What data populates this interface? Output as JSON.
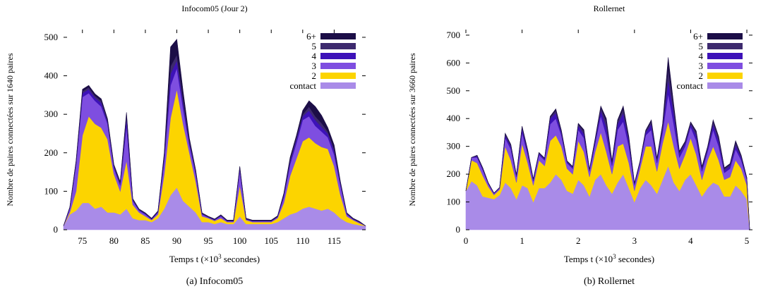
{
  "colors": {
    "contact": "#a98be8",
    "2": "#fcd400",
    "3": "#7e4ee0",
    "4": "#3d12b8",
    "5": "#3d2a6e",
    "6+": "#1c0e47"
  },
  "layer_keys": [
    "contact",
    "2",
    "3",
    "4",
    "5",
    "6+"
  ],
  "chart_data": [
    {
      "type": "area",
      "stacked": true,
      "title": "Infocom05 (Jour 2)",
      "xlabel_prefix": "Temps t (×10",
      "xlabel_exp": "3",
      "xlabel_suffix": " secondes)",
      "ylabel": "Nombre de paires connectées sur 1640 paires",
      "xlim": [
        72,
        120
      ],
      "ylim": [
        0,
        520
      ],
      "xticks": [
        75,
        80,
        85,
        90,
        95,
        100,
        105,
        110,
        115
      ],
      "yticks": [
        0,
        100,
        200,
        300,
        400,
        500
      ],
      "legend": {
        "position": "top-right",
        "labels": [
          "6+",
          "5",
          "4",
          "3",
          "2",
          "contact"
        ]
      },
      "caption": "(a) Infocom05",
      "x": [
        72,
        73,
        74,
        75,
        76,
        77,
        78,
        79,
        80,
        81,
        82,
        83,
        84,
        85,
        86,
        87,
        88,
        89,
        90,
        91,
        92,
        93,
        94,
        95,
        96,
        97,
        98,
        99,
        100,
        101,
        102,
        103,
        104,
        105,
        106,
        107,
        108,
        109,
        110,
        111,
        112,
        113,
        114,
        115,
        116,
        117,
        118,
        119,
        120
      ],
      "series": [
        {
          "name": "contact",
          "values": [
            10,
            40,
            50,
            70,
            70,
            55,
            60,
            45,
            45,
            40,
            55,
            30,
            25,
            25,
            20,
            30,
            55,
            90,
            110,
            75,
            60,
            45,
            20,
            20,
            15,
            20,
            15,
            15,
            35,
            15,
            15,
            15,
            15,
            15,
            20,
            30,
            40,
            45,
            55,
            60,
            55,
            50,
            55,
            45,
            30,
            20,
            15,
            12,
            10
          ]
        },
        {
          "name": "2",
          "values": [
            0,
            5,
            50,
            175,
            225,
            220,
            205,
            190,
            100,
            60,
            125,
            35,
            20,
            10,
            5,
            10,
            90,
            200,
            255,
            200,
            140,
            80,
            15,
            10,
            8,
            10,
            5,
            5,
            80,
            10,
            5,
            5,
            5,
            5,
            10,
            40,
            100,
            140,
            175,
            180,
            170,
            165,
            155,
            120,
            60,
            15,
            10,
            5,
            0
          ]
        },
        {
          "name": "3",
          "values": [
            0,
            10,
            70,
            100,
            60,
            60,
            55,
            40,
            15,
            15,
            90,
            10,
            5,
            5,
            2,
            5,
            35,
            85,
            55,
            40,
            20,
            20,
            5,
            2,
            2,
            5,
            2,
            2,
            40,
            2,
            2,
            2,
            2,
            2,
            3,
            15,
            30,
            40,
            55,
            55,
            45,
            40,
            30,
            30,
            25,
            5,
            2,
            2,
            0
          ]
        },
        {
          "name": "4",
          "values": [
            0,
            2,
            5,
            10,
            10,
            8,
            10,
            5,
            5,
            5,
            20,
            3,
            2,
            2,
            1,
            2,
            10,
            30,
            20,
            15,
            8,
            5,
            2,
            1,
            1,
            2,
            1,
            1,
            5,
            1,
            1,
            1,
            1,
            1,
            1,
            5,
            8,
            10,
            10,
            15,
            15,
            12,
            10,
            10,
            5,
            2,
            1,
            1,
            0
          ]
        },
        {
          "name": "5",
          "values": [
            0,
            1,
            3,
            5,
            5,
            5,
            5,
            5,
            3,
            3,
            10,
            2,
            1,
            1,
            1,
            1,
            5,
            20,
            15,
            10,
            5,
            3,
            1,
            1,
            1,
            1,
            1,
            1,
            3,
            1,
            1,
            1,
            1,
            1,
            1,
            3,
            5,
            5,
            5,
            10,
            10,
            10,
            5,
            5,
            3,
            1,
            1,
            1,
            0
          ]
        },
        {
          "name": "6+",
          "values": [
            0,
            1,
            2,
            5,
            5,
            5,
            5,
            3,
            2,
            2,
            5,
            1,
            1,
            1,
            1,
            1,
            5,
            50,
            40,
            20,
            5,
            2,
            1,
            1,
            1,
            1,
            1,
            1,
            2,
            1,
            1,
            1,
            1,
            1,
            1,
            2,
            5,
            5,
            10,
            15,
            25,
            20,
            10,
            10,
            2,
            1,
            1,
            1,
            0
          ]
        }
      ]
    },
    {
      "type": "area",
      "stacked": true,
      "title": "Rollernet",
      "xlabel_prefix": "Temps t (×10",
      "xlabel_exp": "3",
      "xlabel_suffix": " secondes)",
      "ylabel": "Nombre de paires connectées sur 3660 paires",
      "xlim": [
        0,
        5.1
      ],
      "ylim": [
        0,
        720
      ],
      "xticks": [
        0,
        1,
        2,
        3,
        4,
        5
      ],
      "yticks": [
        0,
        100,
        200,
        300,
        400,
        500,
        600,
        700
      ],
      "legend": {
        "position": "top-right",
        "labels": [
          "6+",
          "5",
          "4",
          "3",
          "2",
          "contact"
        ]
      },
      "caption": "(b) Rollernet",
      "x": [
        0,
        0.1,
        0.2,
        0.3,
        0.4,
        0.5,
        0.6,
        0.7,
        0.8,
        0.9,
        1.0,
        1.1,
        1.2,
        1.3,
        1.4,
        1.5,
        1.6,
        1.7,
        1.8,
        1.9,
        2.0,
        2.1,
        2.2,
        2.3,
        2.4,
        2.5,
        2.6,
        2.7,
        2.8,
        2.9,
        3.0,
        3.1,
        3.2,
        3.3,
        3.4,
        3.5,
        3.6,
        3.7,
        3.8,
        3.9,
        4.0,
        4.1,
        4.2,
        4.3,
        4.4,
        4.5,
        4.6,
        4.7,
        4.8,
        4.9,
        5.0,
        5.05
      ],
      "series": [
        {
          "name": "contact",
          "values": [
            140,
            175,
            160,
            120,
            115,
            110,
            125,
            170,
            150,
            110,
            160,
            150,
            100,
            150,
            150,
            170,
            200,
            180,
            140,
            130,
            180,
            160,
            120,
            180,
            200,
            160,
            130,
            170,
            200,
            150,
            100,
            150,
            180,
            160,
            130,
            180,
            230,
            170,
            140,
            180,
            200,
            160,
            120,
            150,
            170,
            160,
            120,
            120,
            160,
            140,
            110,
            0
          ]
        },
        {
          "name": "2",
          "values": [
            0,
            75,
            80,
            75,
            40,
            15,
            20,
            130,
            100,
            60,
            150,
            90,
            60,
            100,
            80,
            150,
            140,
            120,
            80,
            70,
            140,
            120,
            70,
            100,
            150,
            120,
            70,
            130,
            110,
            90,
            40,
            70,
            120,
            140,
            80,
            130,
            160,
            130,
            80,
            90,
            130,
            110,
            60,
            100,
            130,
            90,
            60,
            70,
            90,
            80,
            50,
            0
          ]
        },
        {
          "name": "3",
          "values": [
            0,
            10,
            20,
            20,
            10,
            5,
            5,
            30,
            40,
            20,
            40,
            30,
            15,
            20,
            20,
            60,
            60,
            40,
            20,
            20,
            40,
            50,
            20,
            30,
            60,
            60,
            30,
            60,
            80,
            60,
            20,
            20,
            40,
            60,
            30,
            40,
            100,
            80,
            40,
            30,
            40,
            50,
            30,
            30,
            60,
            50,
            25,
            30,
            40,
            30,
            20,
            0
          ]
        },
        {
          "name": "4",
          "values": [
            0,
            0,
            5,
            5,
            2,
            1,
            1,
            10,
            10,
            5,
            15,
            10,
            5,
            5,
            5,
            20,
            20,
            10,
            5,
            5,
            15,
            15,
            5,
            10,
            20,
            30,
            10,
            20,
            30,
            20,
            5,
            5,
            10,
            20,
            10,
            15,
            50,
            40,
            15,
            10,
            10,
            20,
            10,
            10,
            20,
            20,
            10,
            10,
            15,
            10,
            5,
            0
          ]
        },
        {
          "name": "5",
          "values": [
            0,
            0,
            2,
            2,
            1,
            1,
            1,
            5,
            5,
            2,
            5,
            5,
            2,
            2,
            2,
            5,
            10,
            5,
            2,
            2,
            5,
            10,
            2,
            5,
            10,
            20,
            5,
            10,
            15,
            10,
            2,
            2,
            5,
            10,
            5,
            10,
            40,
            20,
            5,
            5,
            5,
            10,
            5,
            5,
            10,
            10,
            5,
            5,
            10,
            5,
            2,
            0
          ]
        },
        {
          "name": "6+",
          "values": [
            0,
            0,
            1,
            1,
            1,
            0,
            0,
            2,
            2,
            1,
            3,
            3,
            1,
            1,
            1,
            3,
            5,
            3,
            1,
            1,
            3,
            5,
            1,
            3,
            5,
            10,
            3,
            5,
            10,
            5,
            1,
            1,
            3,
            5,
            3,
            5,
            40,
            10,
            3,
            3,
            3,
            5,
            3,
            3,
            5,
            5,
            3,
            3,
            5,
            3,
            1,
            0
          ]
        }
      ]
    }
  ]
}
